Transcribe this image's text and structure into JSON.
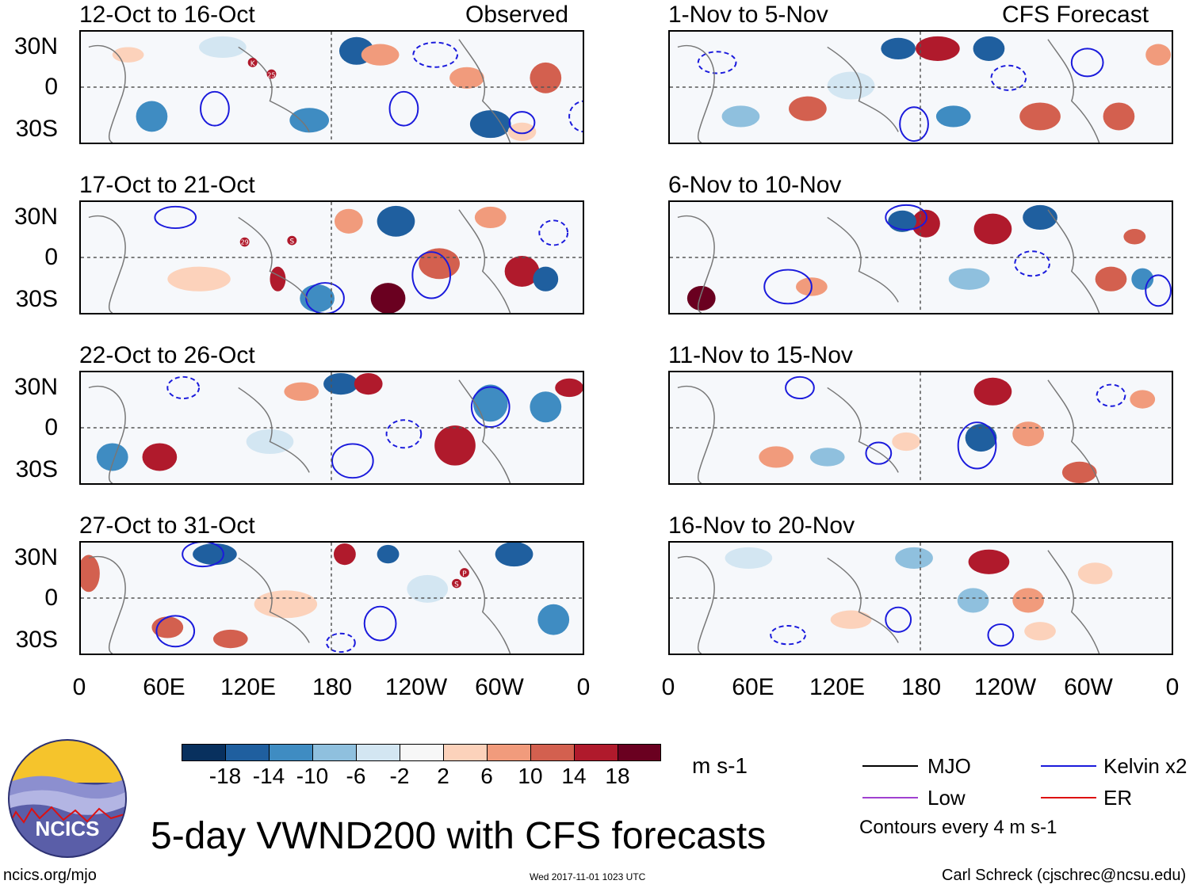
{
  "headers": {
    "observed": "Observed",
    "forecast": "CFS Forecast"
  },
  "panels_left": [
    {
      "period": "12-Oct to 16-Oct"
    },
    {
      "period": "17-Oct to 21-Oct"
    },
    {
      "period": "22-Oct to 26-Oct"
    },
    {
      "period": "27-Oct to 31-Oct"
    }
  ],
  "panels_right": [
    {
      "period": "1-Nov to 5-Nov"
    },
    {
      "period": "6-Nov to 10-Nov"
    },
    {
      "period": "11-Nov to 15-Nov"
    },
    {
      "period": "16-Nov to 20-Nov"
    }
  ],
  "lat_labels": [
    "30N",
    "0",
    "30S"
  ],
  "lon_labels": [
    "0",
    "60E",
    "120E",
    "180",
    "120W",
    "60W",
    "0"
  ],
  "storm_markers": {
    "p1": [
      "K",
      "25"
    ],
    "p2": [
      "29",
      "S"
    ],
    "p4": [
      "P",
      "S"
    ]
  },
  "colorbar": {
    "labels": [
      "-18",
      "-14",
      "-10",
      "-6",
      "-2",
      "2",
      "6",
      "10",
      "14",
      "18"
    ],
    "colors": [
      "#08305e",
      "#1f5f9f",
      "#3f8cc2",
      "#8fc0de",
      "#d3e6f2",
      "#f7f7f7",
      "#fcd2bb",
      "#f19b7c",
      "#d3604f",
      "#b01a2c",
      "#6a0020"
    ],
    "units": "m s-1"
  },
  "legend": {
    "mjo": {
      "label": "MJO",
      "color": "#000000"
    },
    "kelvin": {
      "label": "Kelvin x2",
      "color": "#1a1adc"
    },
    "low": {
      "label": "Low",
      "color": "#a040d0"
    },
    "er": {
      "label": "ER",
      "color": "#dd1111"
    },
    "contours_note": "Contours every 4 m s-1"
  },
  "logo_text": "NCICS",
  "main_title": "5-day VWND200 with CFS forecasts",
  "footer": {
    "site": "ncics.org/mjo",
    "timestamp": "Wed 2017-11-01 1023 UTC",
    "author": "Carl Schreck (cjschrec@ncsu.edu)"
  }
}
